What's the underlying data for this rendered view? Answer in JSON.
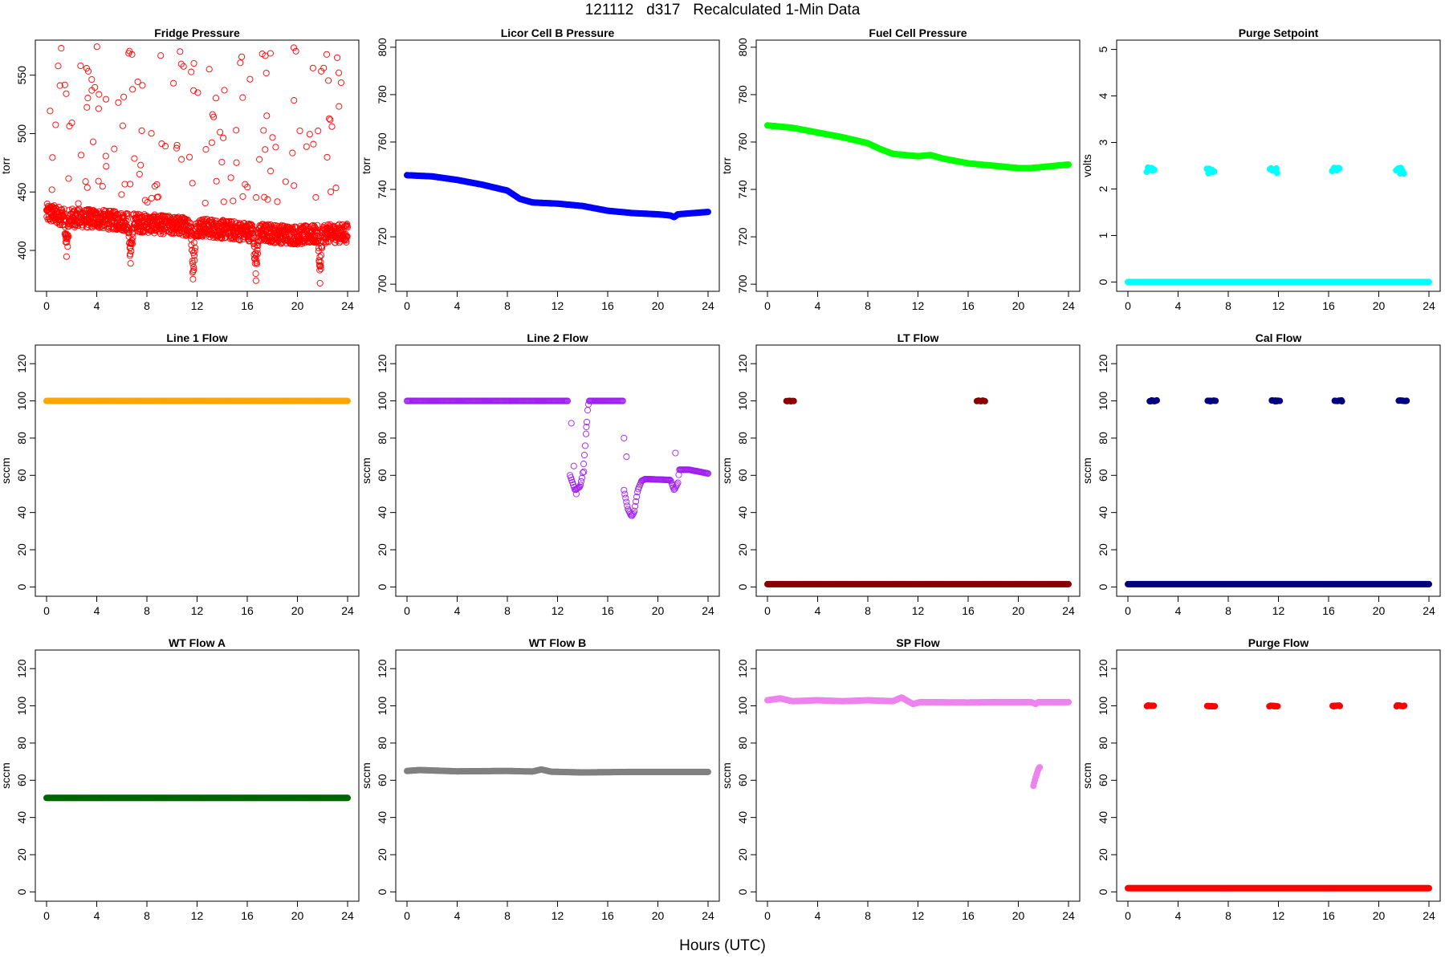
{
  "figure": {
    "title": "121112   d317   Recalculated 1-Min Data",
    "xlabel": "Hours (UTC)"
  },
  "chart_data": [
    {
      "type": "scatter",
      "title": "Fridge Pressure",
      "ylabel": "torr",
      "color": "#FF0000",
      "marker": "open",
      "xlim": [
        0,
        24
      ],
      "ylim": [
        365,
        580
      ],
      "yticks": [
        400,
        450,
        500,
        550
      ],
      "xticks": [
        0,
        4,
        8,
        12,
        16,
        20,
        24
      ],
      "series": [
        {
          "kind": "noisy",
          "base": [
            [
              0,
              432
            ],
            [
              2,
              428
            ],
            [
              4,
              427
            ],
            [
              8,
              423
            ],
            [
              12,
              420
            ],
            [
              16,
              416
            ],
            [
              20,
              413
            ],
            [
              24,
              415
            ]
          ],
          "noise": 8,
          "dips": [
            [
              1.6,
              388
            ],
            [
              6.7,
              387
            ],
            [
              11.7,
              375
            ],
            [
              16.7,
              373
            ],
            [
              21.8,
              371
            ]
          ],
          "outliers": {
            "count": 140,
            "ymin": 440,
            "ymax": 575
          }
        }
      ]
    },
    {
      "type": "scatter",
      "title": "Licor Cell B Pressure",
      "ylabel": "torr",
      "color": "#0000FF",
      "marker": "filled",
      "xlim": [
        0,
        24
      ],
      "ylim": [
        697,
        803
      ],
      "yticks": [
        700,
        720,
        740,
        760,
        780,
        800
      ],
      "xticks": [
        0,
        4,
        8,
        12,
        16,
        20,
        24
      ],
      "series": [
        {
          "kind": "line",
          "points": [
            [
              0,
              746
            ],
            [
              2,
              745.5
            ],
            [
              4,
              744
            ],
            [
              6,
              742
            ],
            [
              8,
              739.5
            ],
            [
              9,
              736
            ],
            [
              10,
              734.5
            ],
            [
              12,
              734
            ],
            [
              13,
              733.5
            ],
            [
              14,
              733
            ],
            [
              16,
              731
            ],
            [
              18,
              730
            ],
            [
              20,
              729.5
            ],
            [
              21,
              729
            ],
            [
              21.3,
              728.3
            ],
            [
              21.6,
              729.5
            ],
            [
              24,
              730.5
            ]
          ]
        }
      ]
    },
    {
      "type": "scatter",
      "title": "Fuel Cell Pressure",
      "ylabel": "torr",
      "color": "#00FF00",
      "marker": "filled",
      "xlim": [
        0,
        24
      ],
      "ylim": [
        697,
        803
      ],
      "yticks": [
        700,
        720,
        740,
        760,
        780,
        800
      ],
      "xticks": [
        0,
        4,
        8,
        12,
        16,
        20,
        24
      ],
      "series": [
        {
          "kind": "line",
          "points": [
            [
              0,
              767
            ],
            [
              2,
              766
            ],
            [
              4,
              764
            ],
            [
              6,
              762
            ],
            [
              8,
              759.5
            ],
            [
              9,
              757
            ],
            [
              10,
              755
            ],
            [
              12,
              754
            ],
            [
              13,
              754.5
            ],
            [
              14,
              753
            ],
            [
              16,
              751
            ],
            [
              18,
              750
            ],
            [
              20,
              749
            ],
            [
              21,
              749
            ],
            [
              22,
              749.5
            ],
            [
              24,
              750.5
            ]
          ]
        }
      ]
    },
    {
      "type": "scatter",
      "title": "Purge Setpoint",
      "ylabel": "volts",
      "color": "#00FFFF",
      "marker": "filled",
      "xlim": [
        0,
        24
      ],
      "ylim": [
        -0.2,
        5.2
      ],
      "yticks": [
        0,
        1,
        2,
        3,
        4,
        5
      ],
      "xticks": [
        0,
        4,
        8,
        12,
        16,
        20,
        24
      ],
      "series": [
        {
          "kind": "line",
          "points": [
            [
              0,
              0
            ],
            [
              24,
              0
            ]
          ]
        },
        {
          "kind": "cluster",
          "y": 2.4,
          "spread": 0.07,
          "centers": [
            1.8,
            6.6,
            11.6,
            16.6,
            21.7
          ]
        }
      ]
    },
    {
      "type": "scatter",
      "title": "Line 1 Flow",
      "ylabel": "sccm",
      "color": "#FFA500",
      "marker": "filled",
      "xlim": [
        0,
        24
      ],
      "ylim": [
        -5,
        130
      ],
      "yticks": [
        0,
        20,
        40,
        60,
        80,
        100,
        120
      ],
      "xticks": [
        0,
        4,
        8,
        12,
        16,
        20,
        24
      ],
      "series": [
        {
          "kind": "line",
          "points": [
            [
              0,
              100
            ],
            [
              24,
              100
            ]
          ]
        }
      ]
    },
    {
      "type": "scatter",
      "title": "Line 2 Flow",
      "ylabel": "sccm",
      "color": "#A020F0",
      "marker": "open",
      "xlim": [
        0,
        24
      ],
      "ylim": [
        -5,
        130
      ],
      "yticks": [
        0,
        20,
        40,
        60,
        80,
        100,
        120
      ],
      "xticks": [
        0,
        4,
        8,
        12,
        16,
        20,
        24
      ],
      "series": [
        {
          "kind": "line",
          "points": [
            [
              0,
              100
            ],
            [
              12.8,
              100
            ]
          ]
        },
        {
          "kind": "line",
          "points": [
            [
              13.0,
              60
            ],
            [
              13.4,
              52
            ],
            [
              13.8,
              54
            ],
            [
              14.0,
              60
            ],
            [
              14.2,
              75
            ],
            [
              14.4,
              95
            ],
            [
              14.5,
              100
            ],
            [
              17.2,
              100
            ]
          ]
        },
        {
          "kind": "line",
          "points": [
            [
              17.3,
              52
            ],
            [
              17.6,
              42
            ],
            [
              17.9,
              38
            ],
            [
              18.1,
              40
            ],
            [
              18.4,
              52
            ],
            [
              18.7,
              57
            ],
            [
              19.0,
              58
            ],
            [
              21.0,
              57.5
            ],
            [
              21.3,
              52
            ],
            [
              21.6,
              56
            ],
            [
              21.7,
              63
            ],
            [
              22.5,
              63
            ],
            [
              24,
              61
            ]
          ]
        },
        {
          "kind": "scatter",
          "points": [
            [
              13.1,
              88
            ],
            [
              13.3,
              65
            ],
            [
              14.1,
              62
            ],
            [
              17.3,
              80
            ],
            [
              17.5,
              70
            ],
            [
              21.4,
              72
            ],
            [
              13.5,
              50
            ],
            [
              14.3,
              86
            ]
          ]
        }
      ]
    },
    {
      "type": "scatter",
      "title": "LT Flow",
      "ylabel": "sccm",
      "color": "#8B0000",
      "marker": "filled",
      "xlim": [
        0,
        24
      ],
      "ylim": [
        -5,
        130
      ],
      "yticks": [
        0,
        20,
        40,
        60,
        80,
        100,
        120
      ],
      "xticks": [
        0,
        4,
        8,
        12,
        16,
        20,
        24
      ],
      "series": [
        {
          "kind": "line",
          "points": [
            [
              0,
              1.5
            ],
            [
              24,
              1.5
            ]
          ]
        },
        {
          "kind": "cluster",
          "y": 100,
          "spread": 0.3,
          "centers": [
            1.8,
            17.0
          ]
        }
      ]
    },
    {
      "type": "scatter",
      "title": "Cal Flow",
      "ylabel": "sccm",
      "color": "#000080",
      "marker": "filled",
      "xlim": [
        0,
        24
      ],
      "ylim": [
        -5,
        130
      ],
      "yticks": [
        0,
        20,
        40,
        60,
        80,
        100,
        120
      ],
      "xticks": [
        0,
        4,
        8,
        12,
        16,
        20,
        24
      ],
      "series": [
        {
          "kind": "line",
          "points": [
            [
              0,
              1.5
            ],
            [
              24,
              1.5
            ]
          ]
        },
        {
          "kind": "cluster",
          "y": 100,
          "spread": 0.3,
          "centers": [
            2.0,
            6.7,
            11.8,
            16.8,
            21.9
          ]
        }
      ]
    },
    {
      "type": "scatter",
      "title": "WT Flow A",
      "ylabel": "sccm",
      "color": "#006400",
      "marker": "filled",
      "xlim": [
        0,
        24
      ],
      "ylim": [
        -5,
        130
      ],
      "yticks": [
        0,
        20,
        40,
        60,
        80,
        100,
        120
      ],
      "xticks": [
        0,
        4,
        8,
        12,
        16,
        20,
        24
      ],
      "series": [
        {
          "kind": "line",
          "points": [
            [
              0,
              50.5
            ],
            [
              24,
              50.5
            ]
          ]
        }
      ]
    },
    {
      "type": "scatter",
      "title": "WT Flow B",
      "ylabel": "sccm",
      "color": "#808080",
      "marker": "filled",
      "xlim": [
        0,
        24
      ],
      "ylim": [
        -5,
        130
      ],
      "yticks": [
        0,
        20,
        40,
        60,
        80,
        100,
        120
      ],
      "xticks": [
        0,
        4,
        8,
        12,
        16,
        20,
        24
      ],
      "series": [
        {
          "kind": "line",
          "points": [
            [
              0,
              65
            ],
            [
              1,
              65.5
            ],
            [
              4,
              64.8
            ],
            [
              8,
              65
            ],
            [
              10,
              64.7
            ],
            [
              10.7,
              65.8
            ],
            [
              11.5,
              64.6
            ],
            [
              14,
              64.2
            ],
            [
              18,
              64.5
            ],
            [
              24,
              64.5
            ]
          ]
        }
      ]
    },
    {
      "type": "scatter",
      "title": "SP Flow",
      "ylabel": "sccm",
      "color": "#EE82EE",
      "marker": "filled",
      "xlim": [
        0,
        24
      ],
      "ylim": [
        -5,
        130
      ],
      "yticks": [
        0,
        20,
        40,
        60,
        80,
        100,
        120
      ],
      "xticks": [
        0,
        4,
        8,
        12,
        16,
        20,
        24
      ],
      "series": [
        {
          "kind": "line",
          "points": [
            [
              0,
              103
            ],
            [
              1,
              104
            ],
            [
              2,
              102.5
            ],
            [
              4,
              103
            ],
            [
              6,
              102.5
            ],
            [
              8,
              103
            ],
            [
              10,
              102.5
            ],
            [
              10.7,
              104.5
            ],
            [
              11.2,
              102.5
            ],
            [
              11.6,
              101
            ],
            [
              12.2,
              102
            ],
            [
              16,
              101.8
            ],
            [
              18,
              102
            ],
            [
              21,
              102
            ],
            [
              21.4,
              101
            ],
            [
              21.6,
              102
            ],
            [
              24,
              102
            ]
          ]
        },
        {
          "kind": "line",
          "points": [
            [
              21.2,
              57
            ],
            [
              21.4,
              62
            ],
            [
              21.6,
              66
            ],
            [
              21.7,
              67
            ]
          ]
        }
      ]
    },
    {
      "type": "scatter",
      "title": "Purge Flow",
      "ylabel": "sccm",
      "color": "#FF0000",
      "marker": "filled",
      "xlim": [
        0,
        24
      ],
      "ylim": [
        -5,
        130
      ],
      "yticks": [
        0,
        20,
        40,
        60,
        80,
        100,
        120
      ],
      "xticks": [
        0,
        4,
        8,
        12,
        16,
        20,
        24
      ],
      "series": [
        {
          "kind": "line",
          "points": [
            [
              0,
              2
            ],
            [
              24,
              2
            ]
          ]
        },
        {
          "kind": "cluster",
          "y": 100,
          "spread": 0.3,
          "centers": [
            1.8,
            6.6,
            11.6,
            16.6,
            21.7
          ]
        }
      ]
    }
  ]
}
